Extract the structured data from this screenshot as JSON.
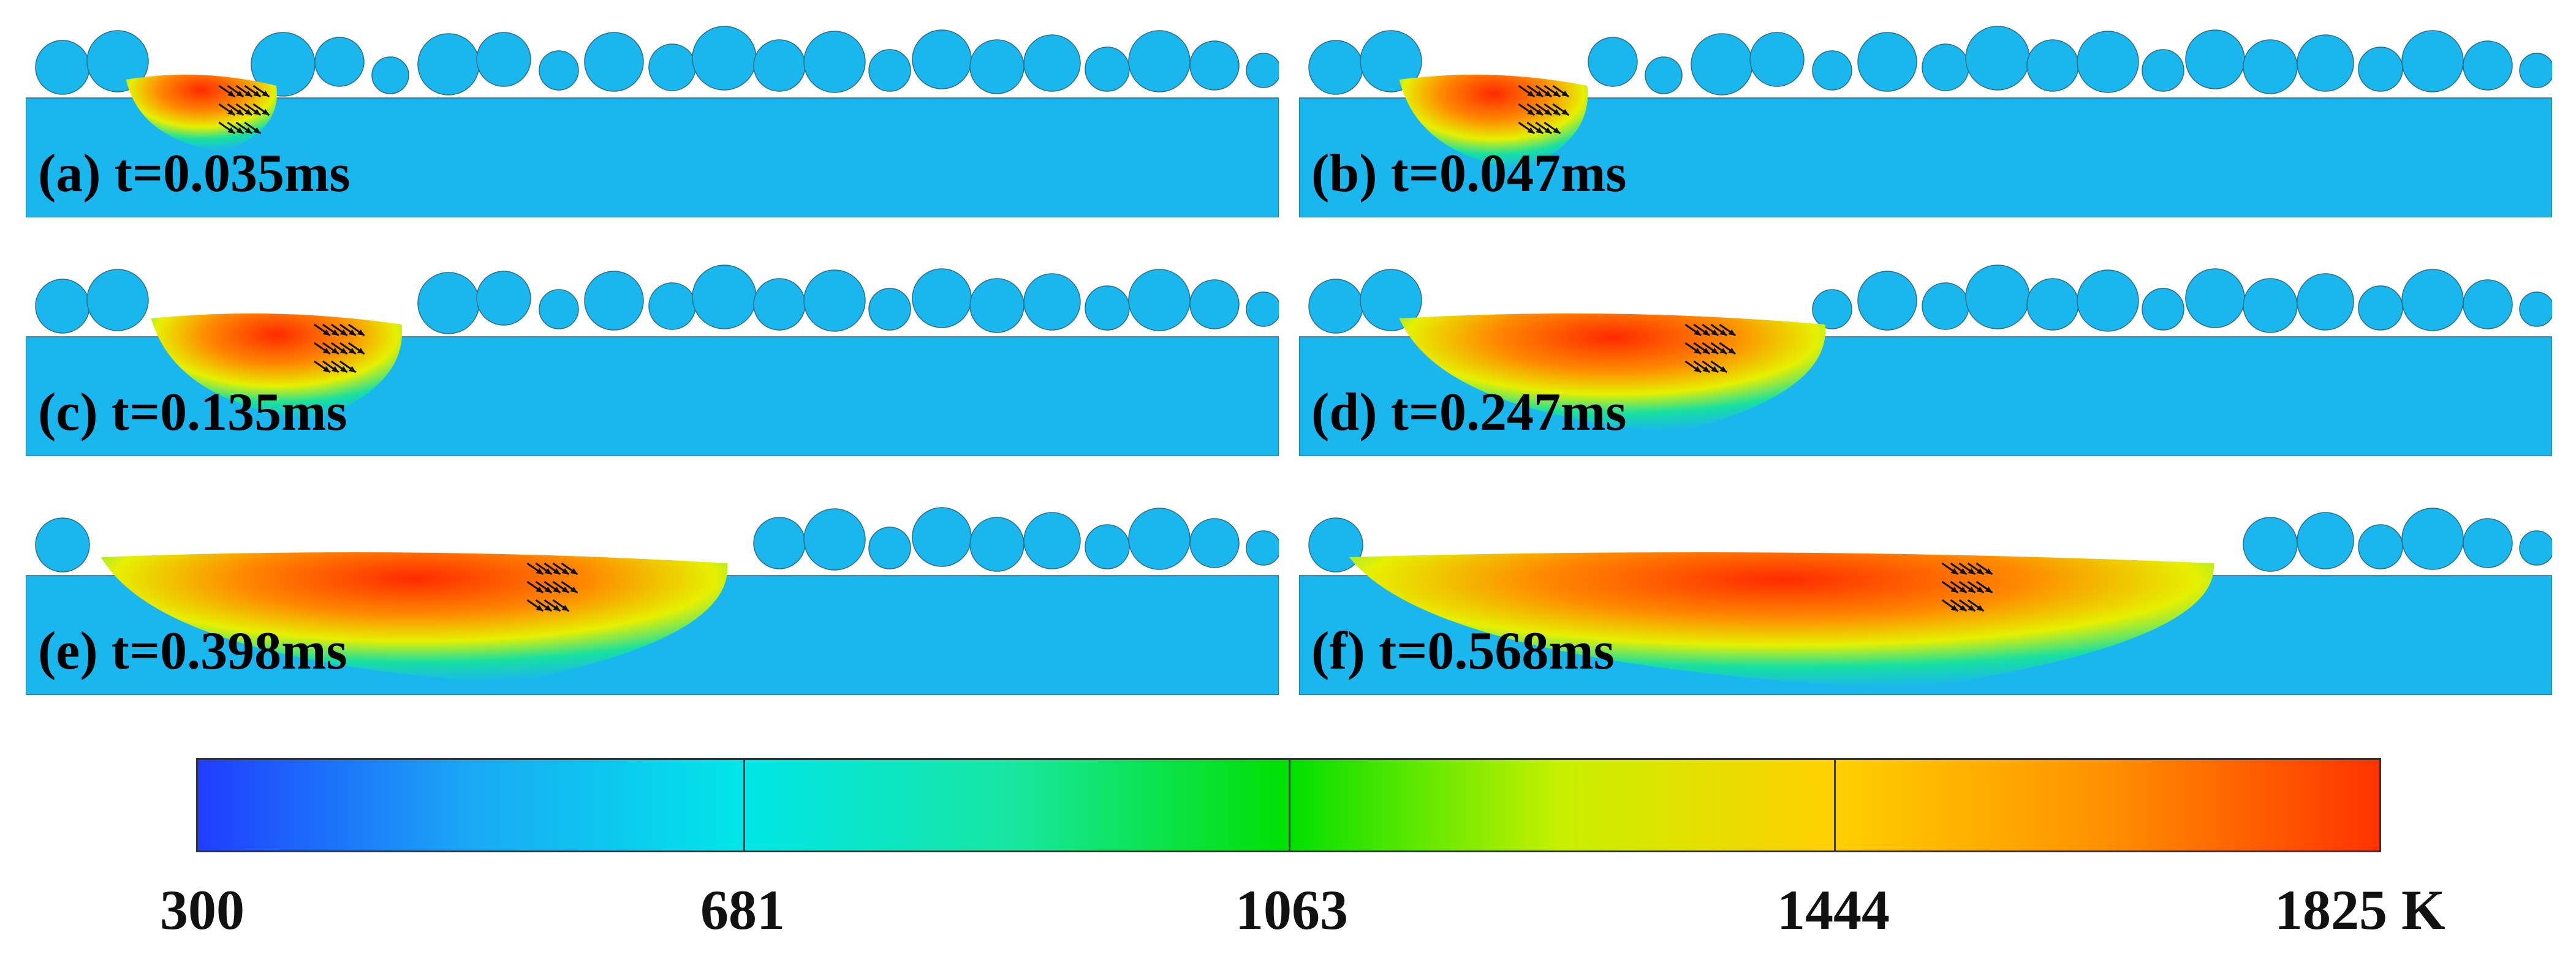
{
  "panels": [
    {
      "label": "(a) t=0.035ms",
      "melt_pool": {
        "start": 0.08,
        "end": 0.2,
        "depth": 0.45
      }
    },
    {
      "label": "(b) t=0.047ms",
      "melt_pool": {
        "start": 0.08,
        "end": 0.23,
        "depth": 0.6
      }
    },
    {
      "label": "(c) t=0.135ms",
      "melt_pool": {
        "start": 0.1,
        "end": 0.3,
        "depth": 0.7
      }
    },
    {
      "label": "(d) t=0.247ms",
      "melt_pool": {
        "start": 0.08,
        "end": 0.42,
        "depth": 0.8
      }
    },
    {
      "label": "(e) t=0.398ms",
      "melt_pool": {
        "start": 0.06,
        "end": 0.56,
        "depth": 0.9
      }
    },
    {
      "label": "(f) t=0.568ms",
      "melt_pool": {
        "start": 0.04,
        "end": 0.73,
        "depth": 0.95
      }
    }
  ],
  "colorbar": {
    "ticks": [
      "300",
      "681",
      "1063",
      "1444",
      "1825 K"
    ],
    "min": 300,
    "max": 1825,
    "colors": [
      "#1f3dff",
      "#1aa9f5",
      "#00e6e8",
      "#18e6a0",
      "#00e000",
      "#c8f000",
      "#ffd000",
      "#ff9000",
      "#ff3300"
    ],
    "substrate_color": "#1ab6ee",
    "hot_color": "#ff2a00"
  }
}
